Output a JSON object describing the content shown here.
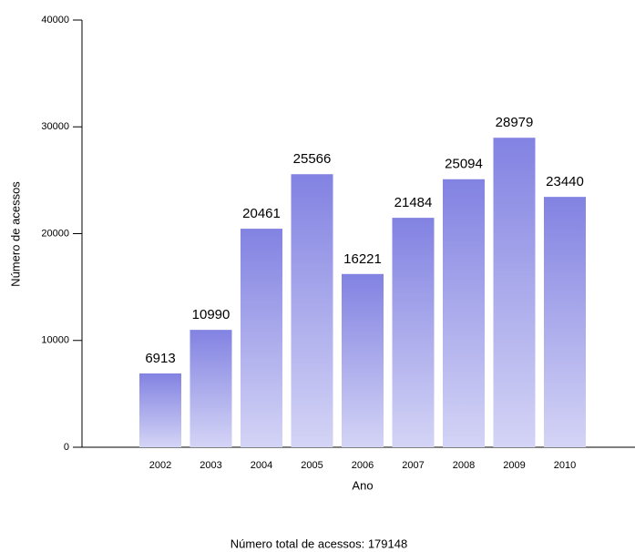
{
  "chart_data": {
    "type": "bar",
    "ylabel": "Número de acessos",
    "xlabel": "Ano",
    "categories": [
      "2002",
      "2003",
      "2004",
      "2005",
      "2006",
      "2007",
      "2008",
      "2009",
      "2010"
    ],
    "values": [
      6913,
      10990,
      20461,
      25566,
      16221,
      21484,
      25094,
      28979,
      23440
    ],
    "color": "#8282e2",
    "ylim": [
      0,
      40000
    ],
    "yticks": [
      0,
      10000,
      20000,
      30000,
      40000
    ],
    "footer": "Número total de acessos: 179148"
  }
}
